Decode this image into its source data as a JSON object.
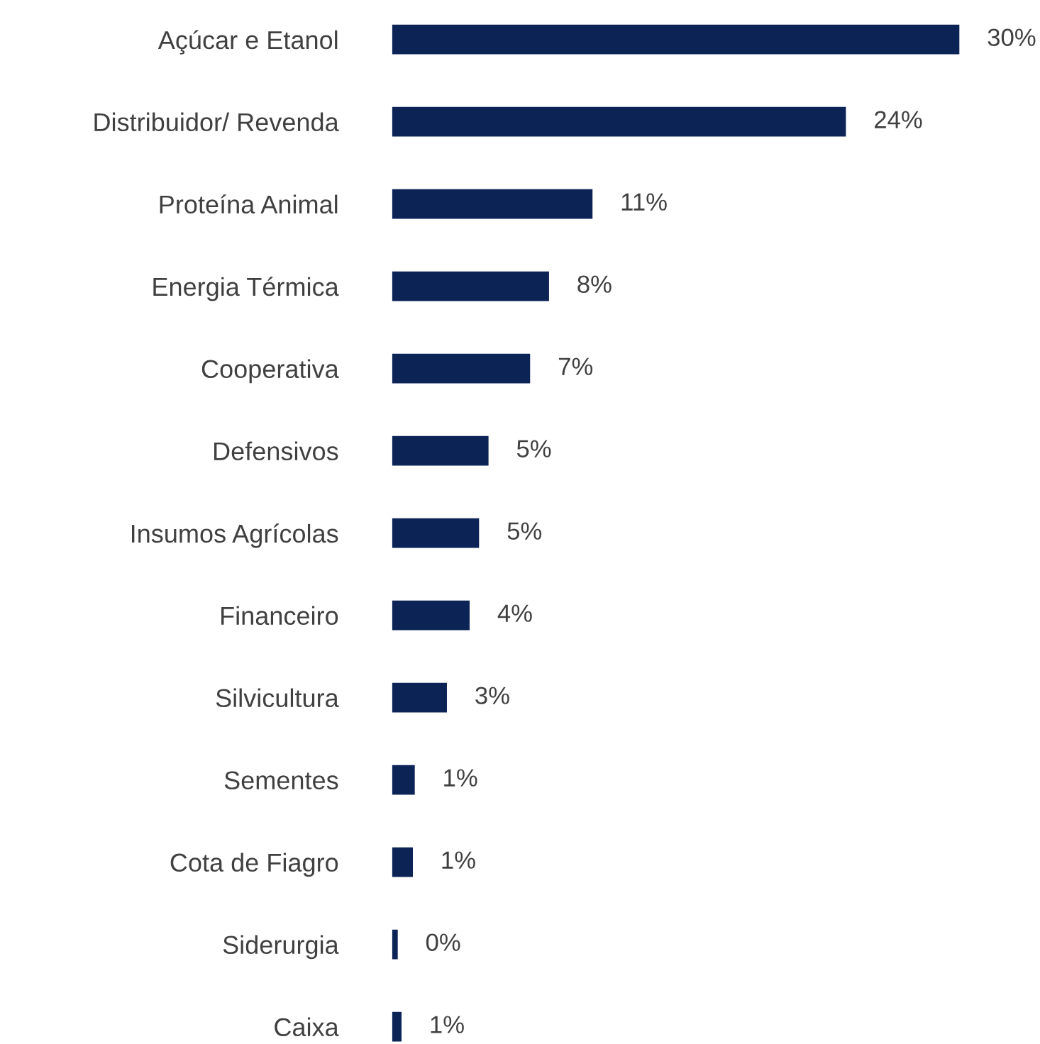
{
  "chart_data": {
    "type": "bar",
    "orientation": "horizontal",
    "categories": [
      "Açúcar e Etanol",
      "Distribuidor/ Revenda",
      "Proteína Animal",
      "Energia Térmica",
      "Cooperativa",
      "Defensivos",
      "Insumos Agrícolas",
      "Financeiro",
      "Silvicultura",
      "Sementes",
      "Cota de Fiagro",
      "Siderurgia",
      "Caixa"
    ],
    "values": [
      30,
      24,
      10.6,
      8.3,
      7.3,
      5.1,
      4.6,
      4.1,
      2.9,
      1.2,
      1.1,
      0.3,
      0.5
    ],
    "value_labels": [
      "30%",
      "24%",
      "11%",
      "8%",
      "7%",
      "5%",
      "5%",
      "4%",
      "3%",
      "1%",
      "1%",
      "0%",
      "1%"
    ],
    "color": "#0c2356",
    "grid": false,
    "legend": false
  }
}
